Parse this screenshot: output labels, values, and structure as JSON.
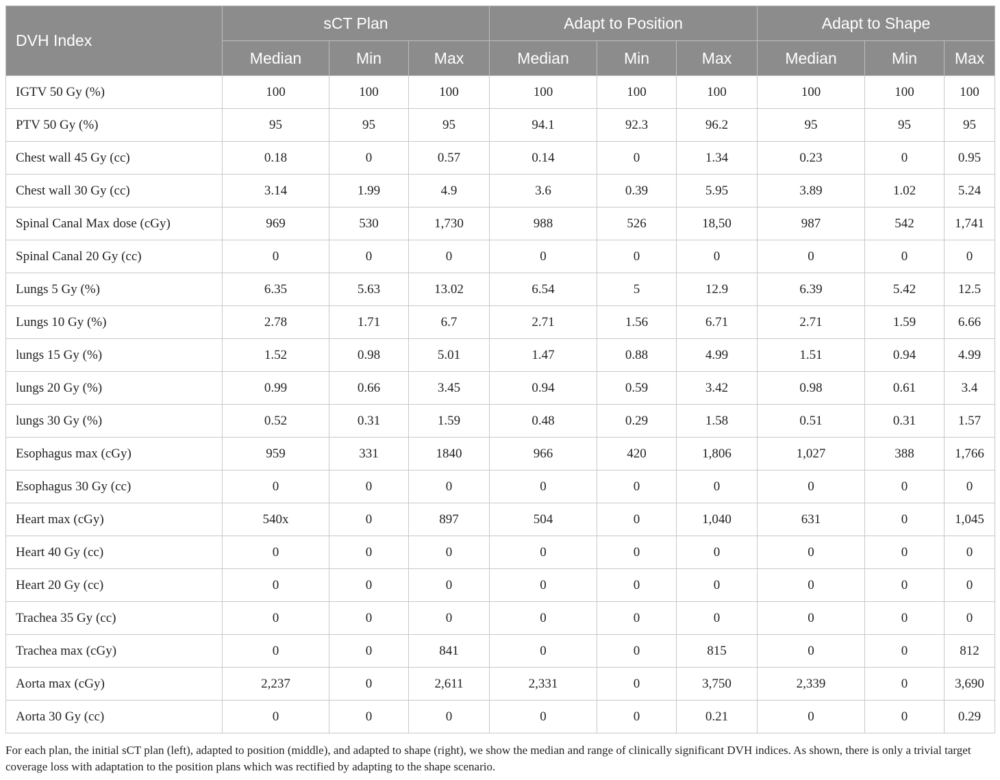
{
  "header": {
    "dvh_index": "DVH Index",
    "groups": [
      "sCT Plan",
      "Adapt to Position",
      "Adapt to Shape"
    ],
    "subheaders": [
      "Median",
      "Min",
      "Max",
      "Median",
      "Min",
      "Max",
      "Median",
      "Min",
      "Max"
    ]
  },
  "rows": [
    {
      "label": "IGTV 50 Gy (%)",
      "values": [
        "100",
        "100",
        "100",
        "100",
        "100",
        "100",
        "100",
        "100",
        "100"
      ]
    },
    {
      "label": "PTV 50 Gy (%)",
      "values": [
        "95",
        "95",
        "95",
        "94.1",
        "92.3",
        "96.2",
        "95",
        "95",
        "95"
      ]
    },
    {
      "label": "Chest wall 45 Gy (cc)",
      "values": [
        "0.18",
        "0",
        "0.57",
        "0.14",
        "0",
        "1.34",
        "0.23",
        "0",
        "0.95"
      ]
    },
    {
      "label": "Chest wall 30 Gy (cc)",
      "values": [
        "3.14",
        "1.99",
        "4.9",
        "3.6",
        "0.39",
        "5.95",
        "3.89",
        "1.02",
        "5.24"
      ]
    },
    {
      "label": "Spinal Canal Max dose (cGy)",
      "values": [
        "969",
        "530",
        "1,730",
        "988",
        "526",
        "18,50",
        "987",
        "542",
        "1,741"
      ]
    },
    {
      "label": "Spinal Canal 20 Gy (cc)",
      "values": [
        "0",
        "0",
        "0",
        "0",
        "0",
        "0",
        "0",
        "0",
        "0"
      ]
    },
    {
      "label": "Lungs 5 Gy (%)",
      "values": [
        "6.35",
        "5.63",
        "13.02",
        "6.54",
        "5",
        "12.9",
        "6.39",
        "5.42",
        "12.5"
      ]
    },
    {
      "label": "Lungs 10 Gy (%)",
      "values": [
        "2.78",
        "1.71",
        "6.7",
        "2.71",
        "1.56",
        "6.71",
        "2.71",
        "1.59",
        "6.66"
      ]
    },
    {
      "label": "lungs 15 Gy (%)",
      "values": [
        "1.52",
        "0.98",
        "5.01",
        "1.47",
        "0.88",
        "4.99",
        "1.51",
        "0.94",
        "4.99"
      ]
    },
    {
      "label": "lungs 20 Gy (%)",
      "values": [
        "0.99",
        "0.66",
        "3.45",
        "0.94",
        "0.59",
        "3.42",
        "0.98",
        "0.61",
        "3.4"
      ]
    },
    {
      "label": "lungs 30 Gy (%)",
      "values": [
        "0.52",
        "0.31",
        "1.59",
        "0.48",
        "0.29",
        "1.58",
        "0.51",
        "0.31",
        "1.57"
      ]
    },
    {
      "label": "Esophagus max (cGy)",
      "values": [
        "959",
        "331",
        "1840",
        "966",
        "420",
        "1,806",
        "1,027",
        "388",
        "1,766"
      ]
    },
    {
      "label": "Esophagus 30 Gy (cc)",
      "values": [
        "0",
        "0",
        "0",
        "0",
        "0",
        "0",
        "0",
        "0",
        "0"
      ]
    },
    {
      "label": "Heart max (cGy)",
      "values": [
        "540x",
        "0",
        "897",
        "504",
        "0",
        "1,040",
        "631",
        "0",
        "1,045"
      ]
    },
    {
      "label": "Heart 40 Gy (cc)",
      "values": [
        "0",
        "0",
        "0",
        "0",
        "0",
        "0",
        "0",
        "0",
        "0"
      ]
    },
    {
      "label": "Heart 20 Gy (cc)",
      "values": [
        "0",
        "0",
        "0",
        "0",
        "0",
        "0",
        "0",
        "0",
        "0"
      ]
    },
    {
      "label": "Trachea 35 Gy (cc)",
      "values": [
        "0",
        "0",
        "0",
        "0",
        "0",
        "0",
        "0",
        "0",
        "0"
      ]
    },
    {
      "label": "Trachea max (cGy)",
      "values": [
        "0",
        "0",
        "841",
        "0",
        "0",
        "815",
        "0",
        "0",
        "812"
      ]
    },
    {
      "label": "Aorta max (cGy)",
      "values": [
        "2,237",
        "0",
        "2,611",
        "2,331",
        "0",
        "3,750",
        "2,339",
        "0",
        "3,690"
      ]
    },
    {
      "label": "Aorta 30 Gy (cc)",
      "values": [
        "0",
        "0",
        "0",
        "0",
        "0",
        "0.21",
        "0",
        "0",
        "0.29"
      ]
    }
  ],
  "caption": "For each plan, the initial sCT plan (left), adapted to position (middle), and adapted to shape (right), we show the median and range of clinically significant DVH indices. As shown, there is only a trivial target coverage loss with adaptation to the position plans which was rectified by adapting to the shape scenario."
}
